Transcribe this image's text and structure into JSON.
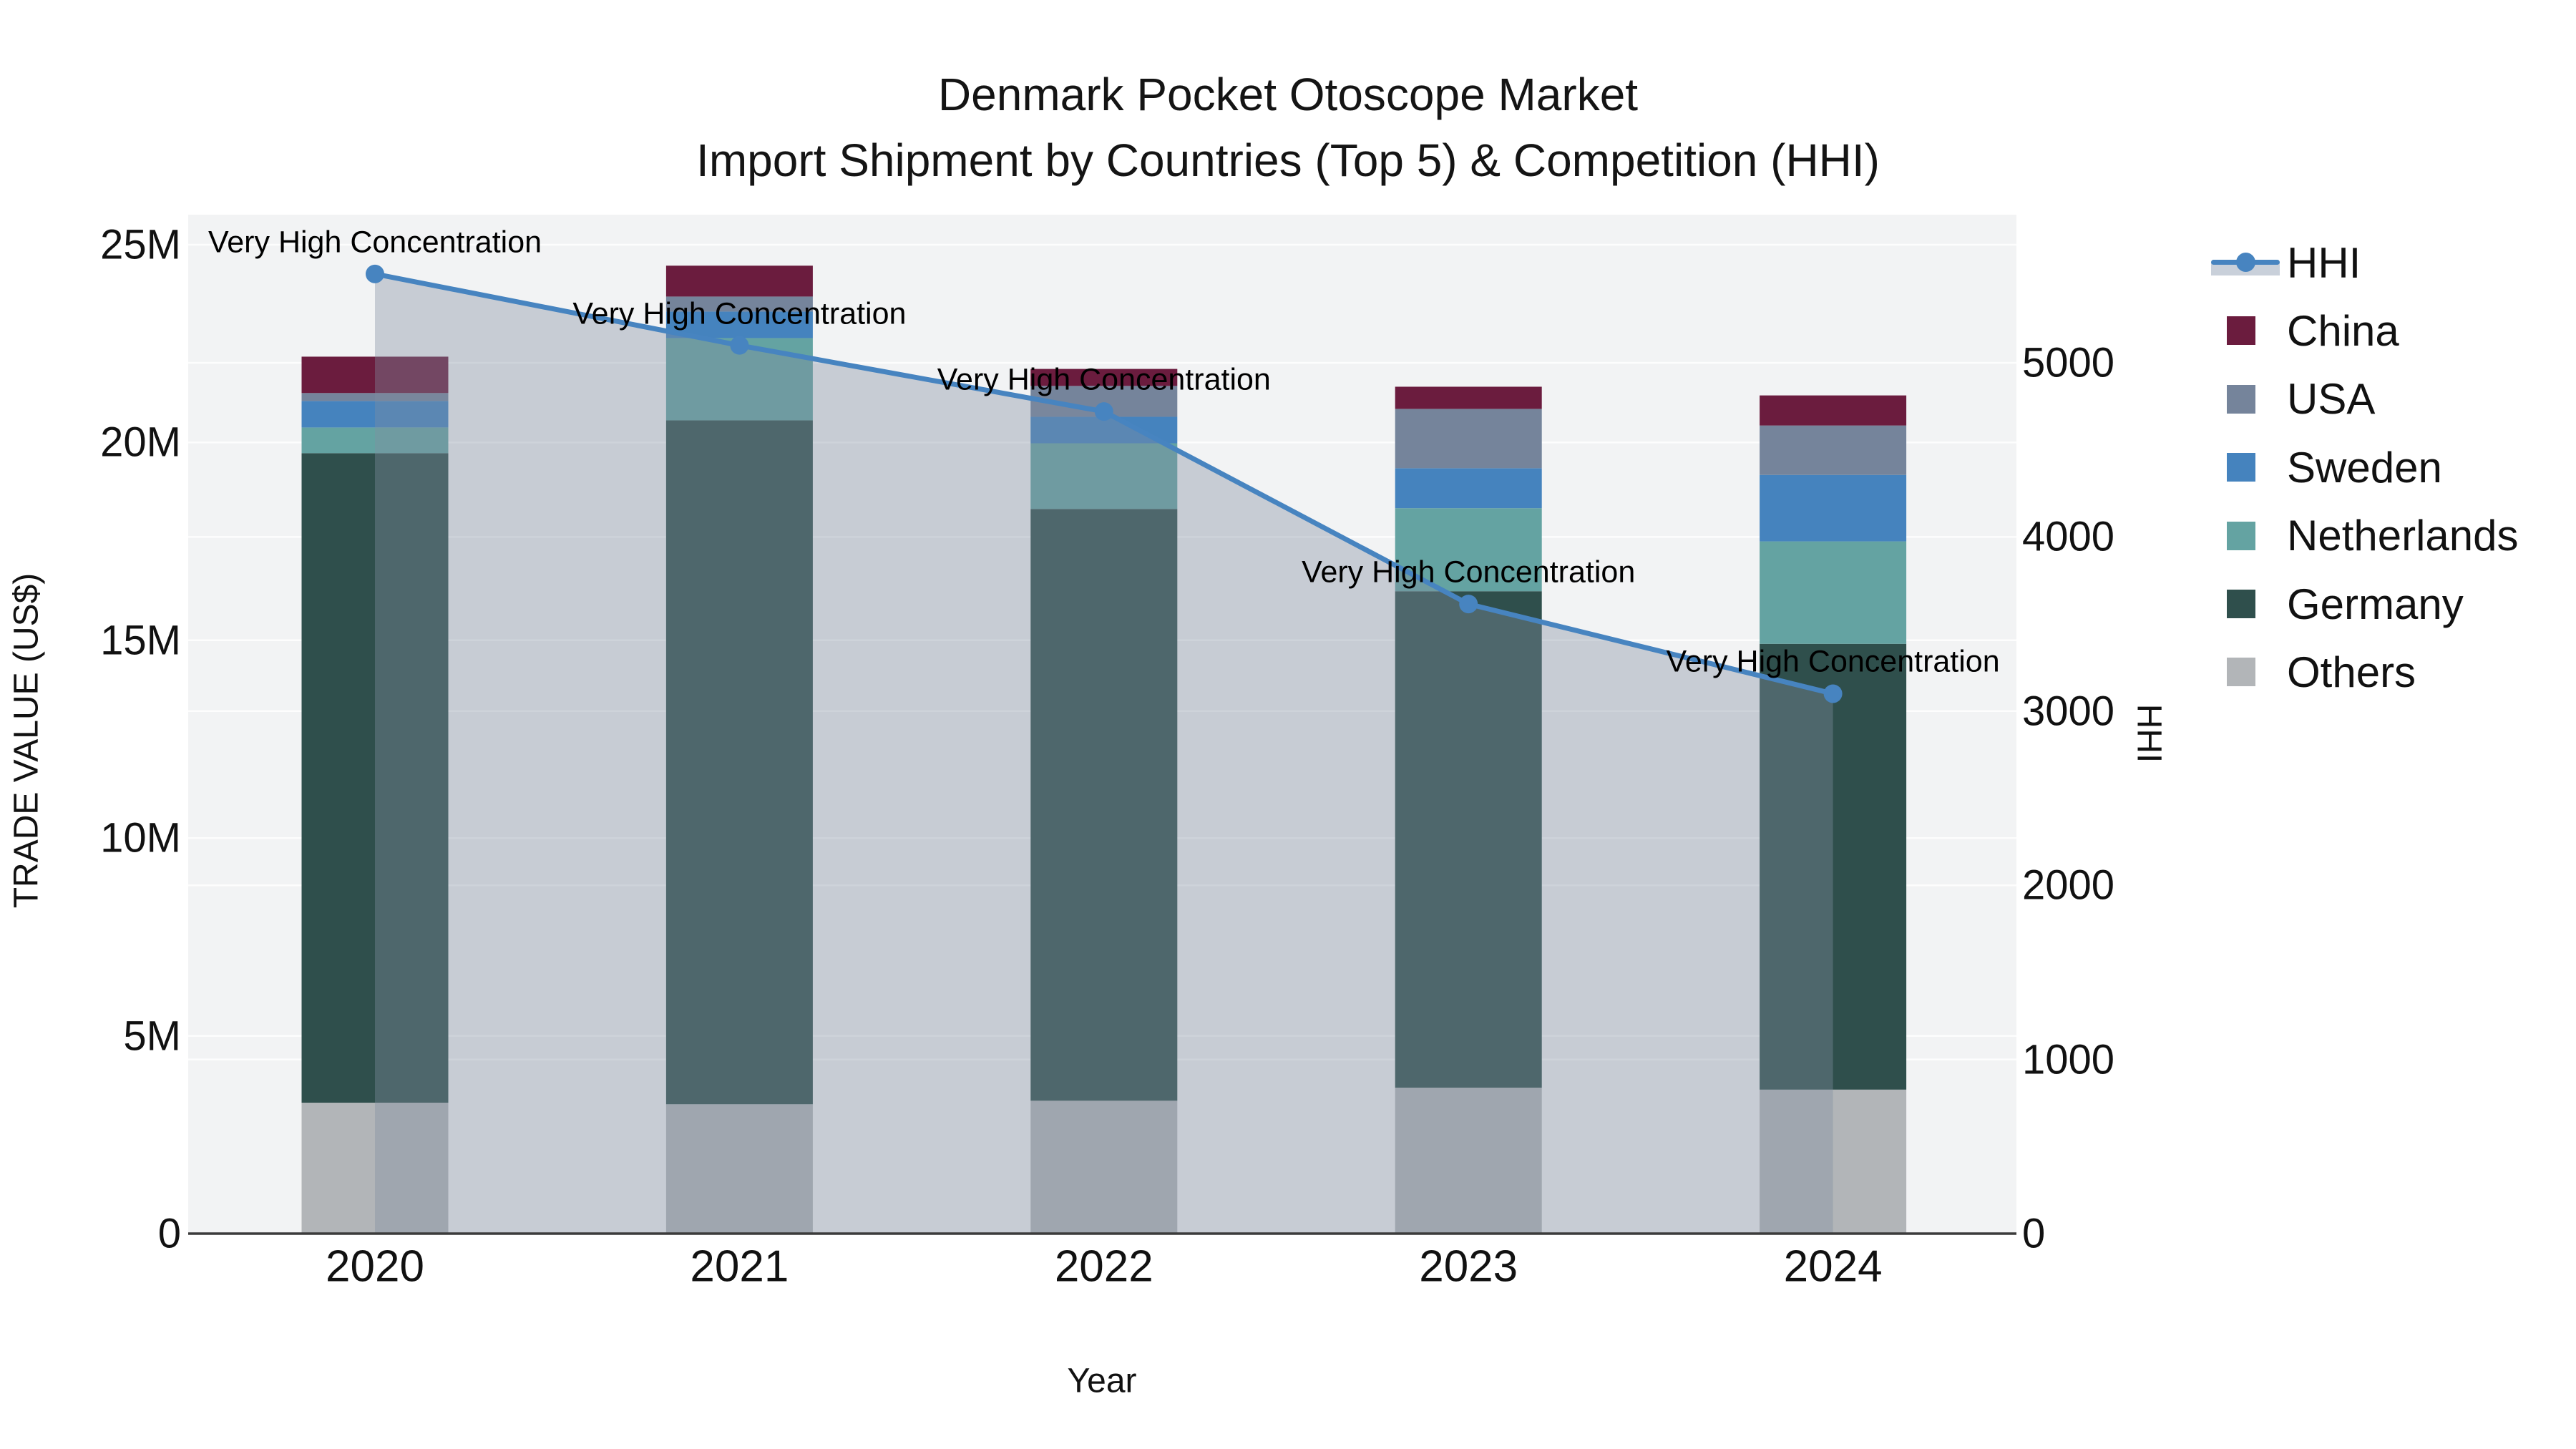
{
  "title": {
    "line1": "Denmark Pocket Otoscope Market",
    "line2": "Import Shipment by Countries (Top 5) & Competition (HHI)"
  },
  "axes": {
    "x": {
      "title": "Year",
      "categories": [
        "2020",
        "2021",
        "2022",
        "2023",
        "2024"
      ]
    },
    "y_left": {
      "title": "TRADE VALUE (US$)",
      "ticks": [
        "0",
        "5M",
        "10M",
        "15M",
        "20M",
        "25M"
      ],
      "tick_values_musd": [
        0,
        5,
        10,
        15,
        20,
        25
      ]
    },
    "y_right": {
      "title": "HHI",
      "ticks": [
        "0",
        "1000",
        "2000",
        "3000",
        "4000",
        "5000"
      ],
      "tick_values": [
        0,
        1000,
        2000,
        3000,
        4000,
        5000
      ]
    }
  },
  "legend": {
    "items": [
      {
        "label": "HHI",
        "type": "line",
        "color": "#4784C0"
      },
      {
        "label": "China",
        "type": "swatch",
        "color": "#6B1C3E"
      },
      {
        "label": "USA",
        "type": "swatch",
        "color": "#75849B"
      },
      {
        "label": "Sweden",
        "type": "swatch",
        "color": "#4583BE"
      },
      {
        "label": "Netherlands",
        "type": "swatch",
        "color": "#64A3A2"
      },
      {
        "label": "Germany",
        "type": "swatch",
        "color": "#2F4F4C"
      },
      {
        "label": "Others",
        "type": "swatch",
        "color": "#B2B5B8"
      }
    ]
  },
  "chart_data": {
    "type": "bar+line",
    "title": "Denmark Pocket Otoscope Market — Import Shipment by Countries (Top 5) & Competition (HHI)",
    "categories": [
      "2020",
      "2021",
      "2022",
      "2023",
      "2024"
    ],
    "bar_units": "million US$",
    "series": [
      {
        "name": "China",
        "color": "#6B1C3E",
        "values": [
          0.92,
          0.78,
          0.43,
          0.56,
          0.76
        ]
      },
      {
        "name": "USA",
        "color": "#75849B",
        "values": [
          0.2,
          0.38,
          0.78,
          1.5,
          1.25
        ]
      },
      {
        "name": "Sweden",
        "color": "#4583BE",
        "values": [
          0.67,
          0.67,
          0.67,
          1.01,
          1.68
        ]
      },
      {
        "name": "Netherlands",
        "color": "#64A3A2",
        "values": [
          0.65,
          2.08,
          1.66,
          2.1,
          2.59
        ]
      },
      {
        "name": "Germany",
        "color": "#2F4F4C",
        "values": [
          16.42,
          17.29,
          14.96,
          12.55,
          11.27
        ]
      },
      {
        "name": "Others",
        "color": "#B2B5B8",
        "values": [
          3.31,
          3.27,
          3.36,
          3.69,
          3.64
        ]
      }
    ],
    "stack_order_bottom_to_top": [
      "Others",
      "Germany",
      "Netherlands",
      "Sweden",
      "USA",
      "China"
    ],
    "bar_totals": [
      22.17,
      24.47,
      21.86,
      21.41,
      21.19
    ],
    "line_series": {
      "name": "HHI",
      "color": "#4784C0",
      "values": [
        5510,
        5100,
        4720,
        3615,
        3100
      ],
      "area_fill": true
    },
    "annotations": [
      "Very High Concentration",
      "Very High Concentration",
      "Very High Concentration",
      "Very High Concentration",
      "Very High Concentration"
    ],
    "xlabel": "Year",
    "ylabel_left": "TRADE VALUE (US$)",
    "ylabel_right": "HHI",
    "ylim_left_musd": [
      0,
      25.8
    ],
    "ylim_right": [
      0,
      5855
    ],
    "grid": "horizontal",
    "legend_position": "right"
  },
  "colors": {
    "plot_bg": "#F2F3F4",
    "grid_line": "#FFFFFF",
    "axis_line": "#3B3B3B",
    "hhi_line": "#4784C0",
    "hhi_fill": "rgba(130,142,160,0.38)",
    "hhi_legend_band": "#C9D0DA",
    "text": "#111111"
  }
}
